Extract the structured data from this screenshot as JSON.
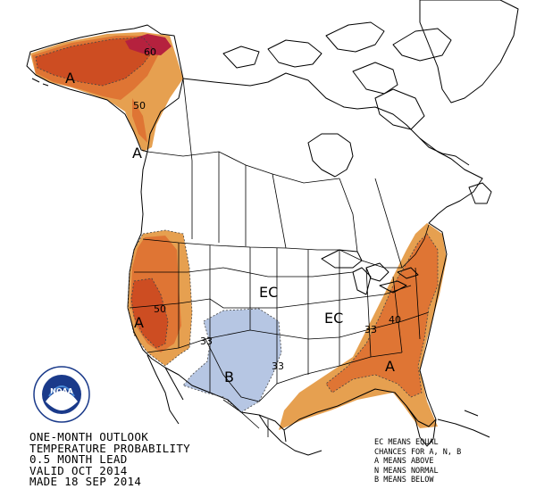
{
  "title": {
    "line1": "ONE-MONTH OUTLOOK",
    "line2": "TEMPERATURE PROBABILITY",
    "line3": "0.5 MONTH LEAD",
    "line4": "VALID OCT 2014",
    "line5": "MADE 18 SEP 2014"
  },
  "legend": {
    "line1": "EC MEANS EQUAL",
    "line2": "CHANCES FOR A, N, B",
    "line3": "A MEANS ABOVE",
    "line4": "N MEANS NORMAL",
    "line5": "B MEANS BELOW"
  },
  "map_labels": {
    "alaska_a": "A",
    "alaska_60": "60",
    "alaska_50": "50",
    "panhandle_a": "A",
    "west_a": "A",
    "west_50": "50",
    "central_ec": "EC",
    "east_ec": "EC",
    "sw_b": "B",
    "sw_33_left": "33",
    "sw_33_right": "33",
    "east_a": "A",
    "east_40": "40",
    "east_33": "33"
  },
  "colors": {
    "above_33": "#e6a050",
    "above_40": "#df7534",
    "above_50": "#cd4d22",
    "above_60": "#b5213e",
    "below_33": "#b6c6e3",
    "outline": "#000000"
  },
  "logo": {
    "text": "NOAA",
    "icon": "noaa-seal-icon"
  }
}
